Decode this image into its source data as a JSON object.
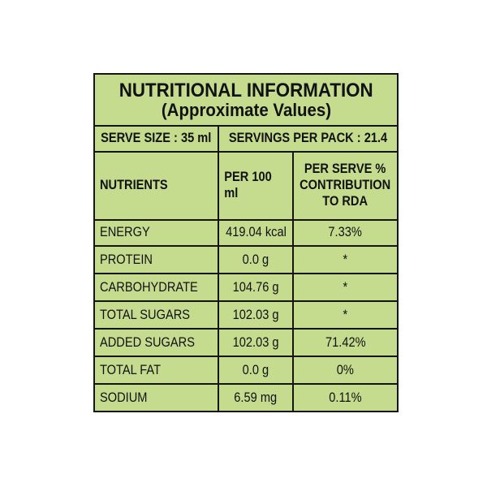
{
  "label": {
    "title": "NUTRITIONAL INFORMATION",
    "subtitle": "(Approximate Values)",
    "serve_size": "SERVE SIZE : 35 ml",
    "servings_per_pack": "SERVINGS PER PACK : 21.4",
    "columns": {
      "nutrients": "NUTRIENTS",
      "per_100ml": "PER 100 ml",
      "rda_line1": "PER SERVE %",
      "rda_line2": "CONTRIBUTION",
      "rda_line3": "TO RDA"
    },
    "rows": [
      {
        "nutrient": "ENERGY",
        "per_100ml": "419.04 kcal",
        "rda": "7.33%"
      },
      {
        "nutrient": "PROTEIN",
        "per_100ml": "0.0 g",
        "rda": "*"
      },
      {
        "nutrient": "CARBOHYDRATE",
        "per_100ml": "104.76 g",
        "rda": "*"
      },
      {
        "nutrient": "TOTAL SUGARS",
        "per_100ml": "102.03 g",
        "rda": "*"
      },
      {
        "nutrient": "ADDED SUGARS",
        "per_100ml": "102.03 g",
        "rda": "71.42%"
      },
      {
        "nutrient": "TOTAL FAT",
        "per_100ml": "0.0 g",
        "rda": "0%"
      },
      {
        "nutrient": "SODIUM",
        "per_100ml": "6.59 mg",
        "rda": "0.11%"
      }
    ],
    "colors": {
      "background": "#c5dc8e",
      "border": "#151515",
      "text": "#111111"
    }
  }
}
